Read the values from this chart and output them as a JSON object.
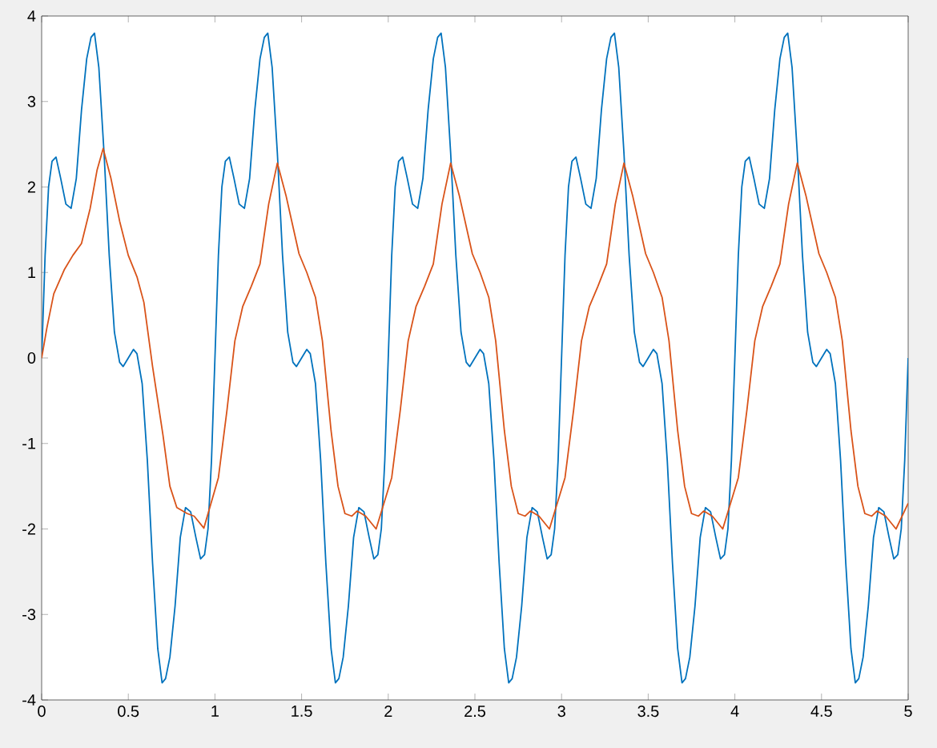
{
  "chart_data": {
    "type": "line",
    "xlim": [
      0,
      5
    ],
    "ylim": [
      -4,
      4
    ],
    "xticks": [
      0,
      0.5,
      1,
      1.5,
      2,
      2.5,
      3,
      3.5,
      4,
      4.5,
      5
    ],
    "yticks": [
      -4,
      -3,
      -2,
      -1,
      0,
      1,
      2,
      3,
      4
    ],
    "grid": false,
    "marker": "none",
    "line_style": "solid",
    "series": [
      {
        "color": "#0072bd",
        "x": [
          0,
          0.02,
          0.04,
          0.06,
          0.083,
          0.11,
          0.14,
          0.17,
          0.2,
          0.23,
          0.26,
          0.285,
          0.305,
          0.33,
          0.36,
          0.39,
          0.42,
          0.45,
          0.47,
          0.5,
          0.53,
          0.55,
          0.58,
          0.61,
          0.64,
          0.67,
          0.695,
          0.715,
          0.74,
          0.77,
          0.8,
          0.83,
          0.86,
          0.89,
          0.917,
          0.94,
          0.96,
          0.98,
          1,
          1.02,
          1.04,
          1.06,
          1.083,
          1.11,
          1.14,
          1.17,
          1.2,
          1.23,
          1.26,
          1.285,
          1.305,
          1.33,
          1.36,
          1.39,
          1.42,
          1.45,
          1.47,
          1.5,
          1.53,
          1.55,
          1.58,
          1.61,
          1.64,
          1.67,
          1.695,
          1.715,
          1.74,
          1.77,
          1.8,
          1.83,
          1.86,
          1.89,
          1.917,
          1.94,
          1.96,
          1.98,
          2,
          2.02,
          2.04,
          2.06,
          2.083,
          2.11,
          2.14,
          2.17,
          2.2,
          2.23,
          2.26,
          2.285,
          2.305,
          2.33,
          2.36,
          2.39,
          2.42,
          2.45,
          2.47,
          2.5,
          2.53,
          2.55,
          2.58,
          2.61,
          2.64,
          2.67,
          2.695,
          2.715,
          2.74,
          2.77,
          2.8,
          2.83,
          2.86,
          2.89,
          2.917,
          2.94,
          2.96,
          2.98,
          3,
          3.02,
          3.04,
          3.06,
          3.083,
          3.11,
          3.14,
          3.17,
          3.2,
          3.23,
          3.26,
          3.285,
          3.305,
          3.33,
          3.36,
          3.39,
          3.42,
          3.45,
          3.47,
          3.5,
          3.53,
          3.55,
          3.58,
          3.61,
          3.64,
          3.67,
          3.695,
          3.715,
          3.74,
          3.77,
          3.8,
          3.83,
          3.86,
          3.89,
          3.917,
          3.94,
          3.96,
          3.98,
          4,
          4.02,
          4.04,
          4.06,
          4.083,
          4.11,
          4.14,
          4.17,
          4.2,
          4.23,
          4.26,
          4.285,
          4.305,
          4.33,
          4.36,
          4.39,
          4.42,
          4.45,
          4.47,
          4.5,
          4.53,
          4.55,
          4.58,
          4.61,
          4.64,
          4.67,
          4.695,
          4.715,
          4.74,
          4.77,
          4.8,
          4.83,
          4.86,
          4.89,
          4.917,
          4.94,
          4.96,
          4.98,
          5
        ],
        "values": [
          0,
          1.2,
          2.0,
          2.3,
          2.35,
          2.1,
          1.8,
          1.75,
          2.1,
          2.9,
          3.5,
          3.75,
          3.8,
          3.4,
          2.4,
          1.2,
          0.3,
          -0.05,
          -0.1,
          0,
          0.1,
          0.05,
          -0.3,
          -1.2,
          -2.4,
          -3.4,
          -3.8,
          -3.75,
          -3.5,
          -2.9,
          -2.1,
          -1.75,
          -1.8,
          -2.1,
          -2.35,
          -2.3,
          -2.0,
          -1.2,
          0,
          1.2,
          2.0,
          2.3,
          2.35,
          2.1,
          1.8,
          1.75,
          2.1,
          2.9,
          3.5,
          3.75,
          3.8,
          3.4,
          2.4,
          1.2,
          0.3,
          -0.05,
          -0.1,
          0,
          0.1,
          0.05,
          -0.3,
          -1.2,
          -2.4,
          -3.4,
          -3.8,
          -3.75,
          -3.5,
          -2.9,
          -2.1,
          -1.75,
          -1.8,
          -2.1,
          -2.35,
          -2.3,
          -2.0,
          -1.2,
          0,
          1.2,
          2.0,
          2.3,
          2.35,
          2.1,
          1.8,
          1.75,
          2.1,
          2.9,
          3.5,
          3.75,
          3.8,
          3.4,
          2.4,
          1.2,
          0.3,
          -0.05,
          -0.1,
          0,
          0.1,
          0.05,
          -0.3,
          -1.2,
          -2.4,
          -3.4,
          -3.8,
          -3.75,
          -3.5,
          -2.9,
          -2.1,
          -1.75,
          -1.8,
          -2.1,
          -2.35,
          -2.3,
          -2.0,
          -1.2,
          0,
          1.2,
          2.0,
          2.3,
          2.35,
          2.1,
          1.8,
          1.75,
          2.1,
          2.9,
          3.5,
          3.75,
          3.8,
          3.4,
          2.4,
          1.2,
          0.3,
          -0.05,
          -0.1,
          0,
          0.1,
          0.05,
          -0.3,
          -1.2,
          -2.4,
          -3.4,
          -3.8,
          -3.75,
          -3.5,
          -2.9,
          -2.1,
          -1.75,
          -1.8,
          -2.1,
          -2.35,
          -2.3,
          -2.0,
          -1.2,
          0,
          1.2,
          2.0,
          2.3,
          2.35,
          2.1,
          1.8,
          1.75,
          2.1,
          2.9,
          3.5,
          3.75,
          3.8,
          3.4,
          2.4,
          1.2,
          0.3,
          -0.05,
          -0.1,
          0,
          0.1,
          0.05,
          -0.3,
          -1.2,
          -2.4,
          -3.4,
          -3.8,
          -3.75,
          -3.5,
          -2.9,
          -2.1,
          -1.75,
          -1.8,
          -2.1,
          -2.35,
          -2.3,
          -2.0,
          -1.2,
          0
        ]
      },
      {
        "color": "#d95319",
        "x": [
          0,
          0.03,
          0.07,
          0.13,
          0.18,
          0.23,
          0.28,
          0.32,
          0.355,
          0.4,
          0.45,
          0.5,
          0.55,
          0.59,
          0.64,
          0.7,
          0.74,
          0.78,
          0.84,
          0.88,
          0.936,
          1.02,
          1.07,
          1.115,
          1.16,
          1.21,
          1.26,
          1.31,
          1.36,
          1.41,
          1.485,
          1.53,
          1.58,
          1.62,
          1.67,
          1.71,
          1.75,
          1.79,
          1.82,
          1.87,
          1.93,
          2.02,
          2.07,
          2.115,
          2.16,
          2.21,
          2.26,
          2.31,
          2.36,
          2.41,
          2.485,
          2.53,
          2.58,
          2.62,
          2.67,
          2.71,
          2.75,
          2.79,
          2.82,
          2.87,
          2.93,
          3.02,
          3.07,
          3.115,
          3.16,
          3.21,
          3.26,
          3.31,
          3.36,
          3.41,
          3.485,
          3.53,
          3.58,
          3.62,
          3.67,
          3.71,
          3.75,
          3.79,
          3.82,
          3.87,
          3.93,
          4.02,
          4.07,
          4.115,
          4.16,
          4.21,
          4.26,
          4.31,
          4.36,
          4.41,
          4.485,
          4.53,
          4.58,
          4.62,
          4.67,
          4.71,
          4.75,
          4.79,
          4.82,
          4.87,
          4.93,
          5
        ],
        "values": [
          0,
          0.35,
          0.75,
          1.03,
          1.2,
          1.34,
          1.75,
          2.2,
          2.45,
          2.1,
          1.6,
          1.2,
          0.95,
          0.65,
          -0.1,
          -0.9,
          -1.5,
          -1.75,
          -1.82,
          -1.85,
          -1.99,
          -1.4,
          -0.6,
          0.2,
          0.6,
          0.84,
          1.1,
          1.8,
          2.28,
          1.9,
          1.22,
          1.0,
          0.71,
          0.2,
          -0.85,
          -1.5,
          -1.82,
          -1.85,
          -1.79,
          -1.85,
          -2.0,
          -1.4,
          -0.6,
          0.2,
          0.6,
          0.84,
          1.1,
          1.8,
          2.28,
          1.9,
          1.22,
          1.0,
          0.71,
          0.2,
          -0.85,
          -1.5,
          -1.82,
          -1.85,
          -1.79,
          -1.85,
          -2.0,
          -1.4,
          -0.6,
          0.2,
          0.6,
          0.84,
          1.1,
          1.8,
          2.28,
          1.9,
          1.22,
          1.0,
          0.71,
          0.2,
          -0.85,
          -1.5,
          -1.82,
          -1.85,
          -1.79,
          -1.85,
          -2.0,
          -1.4,
          -0.6,
          0.2,
          0.6,
          0.84,
          1.1,
          1.8,
          2.28,
          1.9,
          1.22,
          1.0,
          0.71,
          0.2,
          -0.85,
          -1.5,
          -1.82,
          -1.85,
          -1.79,
          -1.85,
          -2.0,
          -1.7
        ]
      }
    ]
  }
}
